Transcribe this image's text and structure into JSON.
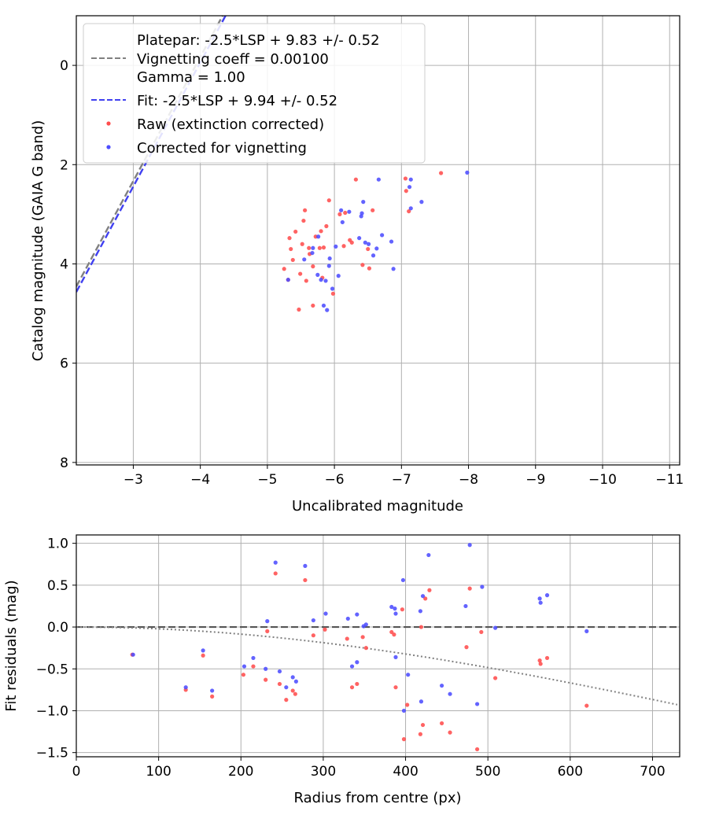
{
  "chart_data": [
    {
      "type": "scatter",
      "xlabel": "Uncalibrated magnitude",
      "ylabel": "Catalog magnitude (GAIA G band)",
      "xlim": [
        -2.15,
        -11.15
      ],
      "ylim": [
        8.05,
        -1.0
      ],
      "x_ticks": [
        -3,
        -4,
        -5,
        -6,
        -7,
        -8,
        -9,
        -10,
        -11
      ],
      "x_tick_labels": [
        "−3",
        "−4",
        "−5",
        "−6",
        "−7",
        "−8",
        "−9",
        "−10",
        "−11"
      ],
      "y_ticks": [
        0,
        2,
        4,
        6,
        8
      ],
      "y_tick_labels": [
        "0",
        "2",
        "4",
        "6",
        "8"
      ],
      "grid": true,
      "legend": {
        "placement": "upper-left",
        "entries": [
          {
            "label": "Platepar: -2.5*LSP + 9.83 +/- 0.52",
            "kind": "none"
          },
          {
            "label": "Vignetting coeff = 0.00100",
            "kind": "dashed-line",
            "color": "#808080"
          },
          {
            "label": "Gamma = 1.00",
            "kind": "none"
          },
          {
            "label": "Fit: -2.5*LSP + 9.94 +/- 0.52",
            "kind": "dashed-line",
            "color": "#4040f0"
          },
          {
            "label": "Raw (extinction corrected)",
            "kind": "dot",
            "color": "#ff4d4d"
          },
          {
            "label": "Corrected for vignetting",
            "kind": "dot",
            "color": "#4d4dff"
          }
        ]
      },
      "lines": [
        {
          "name": "Platepar",
          "color": "#808080",
          "style": "dashed",
          "slope": 2.5,
          "intercept": 9.83
        },
        {
          "name": "Fit",
          "color": "#4040f0",
          "style": "dashed",
          "slope": 2.5,
          "intercept": 9.94
        }
      ],
      "series": [
        {
          "name": "Raw (extinction corrected)",
          "color": "#ff4d4d",
          "points": [
            [
              -5.25,
              4.1
            ],
            [
              -5.31,
              4.32
            ],
            [
              -5.33,
              3.48
            ],
            [
              -5.35,
              3.7
            ],
            [
              -5.38,
              3.92
            ],
            [
              -5.42,
              3.35
            ],
            [
              -5.47,
              4.92
            ],
            [
              -5.49,
              4.2
            ],
            [
              -5.52,
              3.6
            ],
            [
              -5.54,
              3.13
            ],
            [
              -5.56,
              2.92
            ],
            [
              -5.58,
              4.34
            ],
            [
              -5.62,
              3.68
            ],
            [
              -5.63,
              3.8
            ],
            [
              -5.68,
              4.84
            ],
            [
              -5.68,
              4.05
            ],
            [
              -5.72,
              3.45
            ],
            [
              -5.78,
              3.68
            ],
            [
              -5.8,
              3.34
            ],
            [
              -5.82,
              4.28
            ],
            [
              -5.84,
              3.67
            ],
            [
              -5.88,
              3.24
            ],
            [
              -5.92,
              2.72
            ],
            [
              -5.98,
              4.6
            ],
            [
              -6.08,
              3.0
            ],
            [
              -6.14,
              3.64
            ],
            [
              -6.16,
              2.97
            ],
            [
              -6.23,
              3.52
            ],
            [
              -6.26,
              3.57
            ],
            [
              -6.32,
              2.3
            ],
            [
              -6.42,
              4.02
            ],
            [
              -6.5,
              3.7
            ],
            [
              -6.52,
              4.09
            ],
            [
              -6.57,
              2.92
            ],
            [
              -7.06,
              2.28
            ],
            [
              -7.07,
              2.53
            ],
            [
              -7.11,
              2.94
            ],
            [
              -7.59,
              2.17
            ]
          ]
        },
        {
          "name": "Corrected for vignetting",
          "color": "#4d4dff",
          "points": [
            [
              -5.31,
              4.32
            ],
            [
              -5.55,
              3.91
            ],
            [
              -5.67,
              3.78
            ],
            [
              -5.68,
              3.68
            ],
            [
              -5.75,
              4.22
            ],
            [
              -5.76,
              3.45
            ],
            [
              -5.8,
              4.32
            ],
            [
              -5.84,
              4.84
            ],
            [
              -5.87,
              4.34
            ],
            [
              -5.89,
              4.93
            ],
            [
              -5.92,
              4.04
            ],
            [
              -5.93,
              3.89
            ],
            [
              -5.97,
              4.5
            ],
            [
              -6.1,
              2.92
            ],
            [
              -6.12,
              3.16
            ],
            [
              -6.02,
              3.65
            ],
            [
              -6.06,
              4.24
            ],
            [
              -6.22,
              2.95
            ],
            [
              -6.37,
              3.48
            ],
            [
              -6.4,
              3.04
            ],
            [
              -6.41,
              2.98
            ],
            [
              -6.43,
              2.75
            ],
            [
              -6.46,
              3.57
            ],
            [
              -6.51,
              3.6
            ],
            [
              -6.58,
              3.83
            ],
            [
              -6.63,
              3.69
            ],
            [
              -6.66,
              2.3
            ],
            [
              -6.71,
              3.42
            ],
            [
              -6.85,
              3.55
            ],
            [
              -6.88,
              4.1
            ],
            [
              -7.12,
              2.45
            ],
            [
              -7.14,
              2.3
            ],
            [
              -7.14,
              2.88
            ],
            [
              -7.3,
              2.75
            ],
            [
              -7.98,
              2.16
            ]
          ]
        }
      ]
    },
    {
      "type": "scatter",
      "xlabel": "Radius from centre (px)",
      "ylabel": "Fit residuals (mag)",
      "xlim": [
        0,
        733
      ],
      "ylim": [
        -1.55,
        1.1
      ],
      "x_ticks": [
        0,
        100,
        200,
        300,
        400,
        500,
        600,
        700
      ],
      "x_tick_labels": [
        "0",
        "100",
        "200",
        "300",
        "400",
        "500",
        "600",
        "700"
      ],
      "y_ticks": [
        1.0,
        0.5,
        0.0,
        -0.5,
        -1.0,
        -1.5
      ],
      "y_tick_labels": [
        "1.0",
        "0.5",
        "0.0",
        "−0.5",
        "−1.0",
        "−1.5"
      ],
      "grid": true,
      "zero_line": {
        "y": 0,
        "color": "#555555",
        "style": "dashed"
      },
      "vignetting_curve": {
        "coefficient": 0.001,
        "color": "#808080",
        "style": "dotted"
      },
      "series": [
        {
          "name": "Raw (extinction corrected)",
          "color": "#ff4d4d",
          "points": [
            [
              68,
              -0.33
            ],
            [
              133,
              -0.75
            ],
            [
              154,
              -0.34
            ],
            [
              165,
              -0.83
            ],
            [
              203,
              -0.57
            ],
            [
              215,
              -0.47
            ],
            [
              230,
              -0.63
            ],
            [
              232,
              -0.05
            ],
            [
              242,
              0.64
            ],
            [
              247,
              -0.68
            ],
            [
              255,
              -0.87
            ],
            [
              263,
              -0.76
            ],
            [
              266,
              -0.8
            ],
            [
              278,
              0.56
            ],
            [
              288,
              -0.1
            ],
            [
              302,
              -0.03
            ],
            [
              329,
              -0.14
            ],
            [
              335,
              -0.72
            ],
            [
              341,
              -0.68
            ],
            [
              348,
              -0.12
            ],
            [
              352,
              -0.25
            ],
            [
              383,
              -0.06
            ],
            [
              386,
              -0.09
            ],
            [
              388,
              -0.72
            ],
            [
              396,
              0.21
            ],
            [
              398,
              -1.34
            ],
            [
              402,
              -0.93
            ],
            [
              418,
              -1.28
            ],
            [
              419,
              0.0
            ],
            [
              421,
              -1.17
            ],
            [
              424,
              0.34
            ],
            [
              429,
              0.44
            ],
            [
              444,
              -1.15
            ],
            [
              454,
              -1.26
            ],
            [
              474,
              -0.24
            ],
            [
              478,
              0.46
            ],
            [
              487,
              -1.46
            ],
            [
              492,
              -0.06
            ],
            [
              509,
              -0.61
            ],
            [
              563,
              -0.4
            ],
            [
              564,
              -0.44
            ],
            [
              572,
              -0.37
            ],
            [
              620,
              -0.94
            ]
          ]
        },
        {
          "name": "Corrected for vignetting",
          "color": "#4d4dff",
          "points": [
            [
              69,
              -0.33
            ],
            [
              133,
              -0.72
            ],
            [
              154,
              -0.28
            ],
            [
              165,
              -0.76
            ],
            [
              204,
              -0.47
            ],
            [
              215,
              -0.37
            ],
            [
              230,
              -0.5
            ],
            [
              232,
              0.07
            ],
            [
              242,
              0.77
            ],
            [
              247,
              -0.53
            ],
            [
              255,
              -0.72
            ],
            [
              263,
              -0.6
            ],
            [
              267,
              -0.65
            ],
            [
              278,
              0.73
            ],
            [
              288,
              0.08
            ],
            [
              303,
              0.16
            ],
            [
              330,
              0.1
            ],
            [
              335,
              -0.47
            ],
            [
              341,
              -0.42
            ],
            [
              341,
              0.15
            ],
            [
              349,
              0.01
            ],
            [
              352,
              0.03
            ],
            [
              383,
              0.24
            ],
            [
              387,
              0.22
            ],
            [
              388,
              -0.36
            ],
            [
              388,
              0.16
            ],
            [
              397,
              0.56
            ],
            [
              398,
              -1.0
            ],
            [
              403,
              -0.57
            ],
            [
              418,
              0.19
            ],
            [
              419,
              -0.89
            ],
            [
              421,
              0.37
            ],
            [
              428,
              0.86
            ],
            [
              444,
              -0.7
            ],
            [
              454,
              -0.8
            ],
            [
              473,
              0.25
            ],
            [
              478,
              0.98
            ],
            [
              487,
              -0.92
            ],
            [
              493,
              0.48
            ],
            [
              509,
              -0.01
            ],
            [
              563,
              0.34
            ],
            [
              564,
              0.29
            ],
            [
              572,
              0.38
            ],
            [
              620,
              -0.05
            ]
          ]
        }
      ]
    }
  ]
}
